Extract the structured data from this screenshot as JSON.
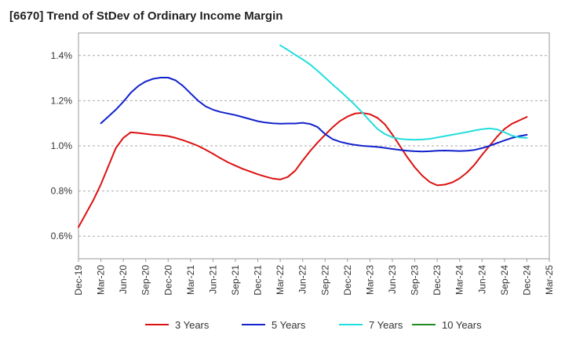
{
  "chart_data": {
    "type": "line",
    "title": "[6670]  Trend of StDev of Ordinary Income Margin",
    "x_ticks": [
      "Dec-19",
      "Mar-20",
      "Jun-20",
      "Sep-20",
      "Dec-20",
      "Mar-21",
      "Jun-21",
      "Sep-21",
      "Dec-21",
      "Mar-22",
      "Jun-22",
      "Sep-22",
      "Dec-22",
      "Mar-23",
      "Jun-23",
      "Sep-23",
      "Dec-23",
      "Mar-24",
      "Jun-24",
      "Sep-24",
      "Dec-24",
      "Mar-25"
    ],
    "y_ticks": [
      "0.6%",
      "0.8%",
      "1.0%",
      "1.2%",
      "1.4%"
    ],
    "y_tick_values": [
      0.6,
      0.8,
      1.0,
      1.2,
      1.4
    ],
    "ylim": [
      0.5,
      1.5
    ],
    "ylabel_unit": "%",
    "grid": "horizontal dashed",
    "legend_position": "bottom",
    "series": [
      {
        "name": "3 Years",
        "color": "#dd1111",
        "x": [
          "Dec-19",
          "Jan-20",
          "Feb-20",
          "Mar-20",
          "Apr-20",
          "May-20",
          "Jun-20",
          "Jul-20",
          "Aug-20",
          "Sep-20",
          "Oct-20",
          "Nov-20",
          "Dec-20",
          "Jan-21",
          "Feb-21",
          "Mar-21",
          "Apr-21",
          "May-21",
          "Jun-21",
          "Jul-21",
          "Aug-21",
          "Sep-21",
          "Oct-21",
          "Nov-21",
          "Dec-21",
          "Jan-22",
          "Feb-22",
          "Mar-22",
          "Apr-22",
          "May-22",
          "Jun-22",
          "Jul-22",
          "Aug-22",
          "Sep-22",
          "Oct-22",
          "Nov-22",
          "Dec-22",
          "Jan-23",
          "Feb-23",
          "Mar-23",
          "Apr-23",
          "May-23",
          "Jun-23",
          "Jul-23",
          "Aug-23",
          "Sep-23",
          "Oct-23",
          "Nov-23",
          "Dec-23",
          "Jan-24",
          "Feb-24",
          "Mar-24",
          "Apr-24",
          "May-24",
          "Jun-24",
          "Jul-24",
          "Aug-24",
          "Sep-24",
          "Oct-24",
          "Nov-24",
          "Dec-24"
        ],
        "values": [
          0.64,
          0.7,
          0.76,
          0.83,
          0.91,
          0.99,
          1.035,
          1.06,
          1.057,
          1.053,
          1.049,
          1.047,
          1.043,
          1.035,
          1.025,
          1.013,
          1.0,
          0.983,
          0.965,
          0.945,
          0.927,
          0.912,
          0.898,
          0.886,
          0.874,
          0.864,
          0.855,
          0.851,
          0.862,
          0.89,
          0.935,
          0.977,
          1.015,
          1.049,
          1.082,
          1.11,
          1.13,
          1.143,
          1.146,
          1.14,
          1.124,
          1.095,
          1.05,
          1.0,
          0.95,
          0.905,
          0.868,
          0.84,
          0.825,
          0.828,
          0.838,
          0.856,
          0.882,
          0.917,
          0.96,
          1.0,
          1.04,
          1.075,
          1.098,
          1.113,
          1.128
        ]
      },
      {
        "name": "5 Years",
        "color": "#1122cc",
        "x": [
          "Mar-20",
          "Apr-20",
          "May-20",
          "Jun-20",
          "Jul-20",
          "Aug-20",
          "Sep-20",
          "Oct-20",
          "Nov-20",
          "Dec-20",
          "Jan-21",
          "Feb-21",
          "Mar-21",
          "Apr-21",
          "May-21",
          "Jun-21",
          "Jul-21",
          "Aug-21",
          "Sep-21",
          "Oct-21",
          "Nov-21",
          "Dec-21",
          "Jan-22",
          "Feb-22",
          "Mar-22",
          "Apr-22",
          "May-22",
          "Jun-22",
          "Jul-22",
          "Aug-22",
          "Sep-22",
          "Oct-22",
          "Nov-22",
          "Dec-22",
          "Jan-23",
          "Feb-23",
          "Mar-23",
          "Apr-23",
          "May-23",
          "Jun-23",
          "Jul-23",
          "Aug-23",
          "Sep-23",
          "Oct-23",
          "Nov-23",
          "Dec-23",
          "Jan-24",
          "Feb-24",
          "Mar-24",
          "Apr-24",
          "May-24",
          "Jun-24",
          "Jul-24",
          "Aug-24",
          "Sep-24",
          "Oct-24",
          "Nov-24",
          "Dec-24"
        ],
        "values": [
          1.1,
          1.13,
          1.16,
          1.195,
          1.235,
          1.265,
          1.285,
          1.297,
          1.302,
          1.302,
          1.29,
          1.265,
          1.232,
          1.2,
          1.175,
          1.16,
          1.15,
          1.143,
          1.136,
          1.127,
          1.118,
          1.109,
          1.103,
          1.1,
          1.098,
          1.099,
          1.099,
          1.102,
          1.097,
          1.083,
          1.052,
          1.03,
          1.018,
          1.01,
          1.004,
          1.0,
          0.998,
          0.995,
          0.991,
          0.986,
          0.982,
          0.978,
          0.976,
          0.975,
          0.976,
          0.978,
          0.979,
          0.978,
          0.977,
          0.978,
          0.982,
          0.99,
          1.0,
          1.012,
          1.024,
          1.035,
          1.043,
          1.049
        ]
      },
      {
        "name": "7 Years",
        "color": "#22dddd",
        "x": [
          "Mar-22",
          "Apr-22",
          "May-22",
          "Jun-22",
          "Jul-22",
          "Aug-22",
          "Sep-22",
          "Oct-22",
          "Nov-22",
          "Dec-22",
          "Jan-23",
          "Feb-23",
          "Mar-23",
          "Apr-23",
          "May-23",
          "Jun-23",
          "Jul-23",
          "Aug-23",
          "Sep-23",
          "Oct-23",
          "Nov-23",
          "Dec-23",
          "Jan-24",
          "Feb-24",
          "Mar-24",
          "Apr-24",
          "May-24",
          "Jun-24",
          "Jul-24",
          "Aug-24",
          "Sep-24",
          "Oct-24",
          "Nov-24",
          "Dec-24"
        ],
        "values": [
          1.445,
          1.425,
          1.403,
          1.383,
          1.36,
          1.332,
          1.302,
          1.272,
          1.243,
          1.213,
          1.181,
          1.147,
          1.11,
          1.075,
          1.052,
          1.038,
          1.031,
          1.028,
          1.027,
          1.028,
          1.031,
          1.037,
          1.043,
          1.049,
          1.055,
          1.061,
          1.068,
          1.074,
          1.077,
          1.073,
          1.06,
          1.045,
          1.037,
          1.035
        ]
      },
      {
        "name": "10 Years",
        "color": "#228822",
        "x": [],
        "values": []
      }
    ]
  }
}
